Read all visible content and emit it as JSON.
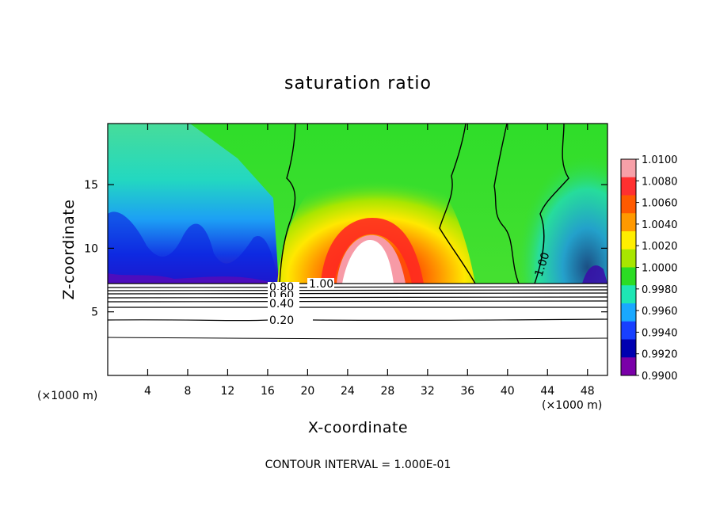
{
  "chart_data": {
    "type": "heatmap",
    "title": "saturation ratio",
    "xlabel": "X-coordinate",
    "ylabel": "Z-coordinate",
    "x_unit": "(×1000 m)",
    "z_unit": "(×1000 m)",
    "xlim": [
      0,
      50
    ],
    "ylim": [
      0,
      19.8
    ],
    "x_ticks": [
      4,
      8,
      12,
      16,
      20,
      24,
      28,
      32,
      36,
      40,
      44,
      48
    ],
    "y_ticks": [
      5,
      10,
      15
    ],
    "colorbar": {
      "min": 0.99,
      "max": 1.01,
      "labels": [
        "1.0100",
        "1.0080",
        "1.0060",
        "1.0040",
        "1.0020",
        "1.0000",
        "0.9980",
        "0.9960",
        "0.9940",
        "0.9920",
        "0.9900"
      ],
      "colors": [
        "#f7a0a8",
        "#ff3030",
        "#ff5a00",
        "#ff9900",
        "#ffee00",
        "#a8e600",
        "#2bdc24",
        "#1ee6b4",
        "#1aa8ff",
        "#1840ff",
        "#0000b0",
        "#7a00a8"
      ]
    },
    "contour_interval_text": "CONTOUR INTERVAL = 1.000E-01",
    "contour_labels": [
      "1.00",
      "0.80",
      "0.60",
      "0.40",
      "0.20",
      "1.00"
    ]
  }
}
